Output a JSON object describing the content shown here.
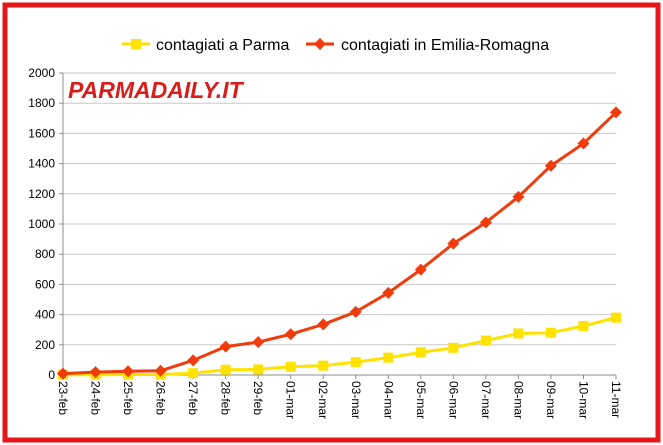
{
  "watermark": "PARMADAILY.IT",
  "colors": {
    "frame": "#e8161b",
    "parma": "#ffe200",
    "emilia": "#f23b0c",
    "grid": "#c8c8c8",
    "axis": "#8c8c8c",
    "watermark_fill": "#d91c1c"
  },
  "chart_data": {
    "type": "line",
    "title": "",
    "xlabel": "",
    "ylabel": "",
    "ylim": [
      0,
      2000
    ],
    "yticks": [
      0,
      200,
      400,
      600,
      800,
      1000,
      1200,
      1400,
      1600,
      1800,
      2000
    ],
    "grid": "horizontal",
    "legend_position": "top",
    "categories": [
      "23-feb",
      "24-feb",
      "25-feb",
      "26-feb",
      "27-feb",
      "28-feb",
      "29-feb",
      "01-mar",
      "02-mar",
      "03-mar",
      "04-mar",
      "05-mar",
      "06-mar",
      "07-mar",
      "08-mar",
      "09-mar",
      "10-mar",
      "11-mar"
    ],
    "series": [
      {
        "name": "contagiati a Parma",
        "marker": "square",
        "values": [
          2,
          2,
          3,
          3,
          12,
          35,
          37,
          55,
          62,
          85,
          115,
          150,
          180,
          228,
          275,
          280,
          325,
          380
        ]
      },
      {
        "name": "contagiati in Emilia-Romagna",
        "marker": "diamond",
        "values": [
          9,
          19,
          25,
          28,
          97,
          188,
          218,
          270,
          335,
          418,
          544,
          698,
          870,
          1010,
          1180,
          1386,
          1533,
          1739
        ]
      }
    ]
  }
}
